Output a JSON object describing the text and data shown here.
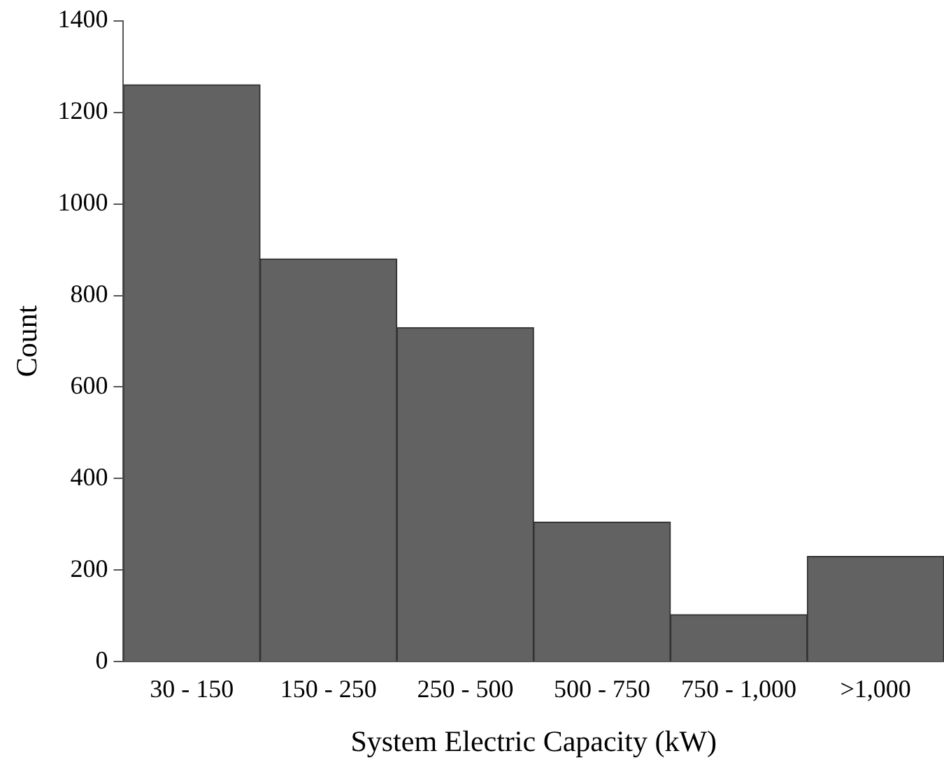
{
  "chart_data": {
    "type": "bar",
    "xlabel": "System Electric Capacity (kW)",
    "ylabel": "Count",
    "categories": [
      "30 - 150",
      "150 - 250",
      "250 - 500",
      "500 - 750",
      "750 - 1,000",
      ">1,000"
    ],
    "values": [
      1260,
      880,
      730,
      305,
      103,
      230
    ],
    "color": "#626262",
    "ylim": [
      0,
      1400
    ],
    "yticks": [
      0,
      200,
      400,
      600,
      800,
      1000,
      1200,
      1400
    ],
    "grid": false,
    "legend": false
  }
}
